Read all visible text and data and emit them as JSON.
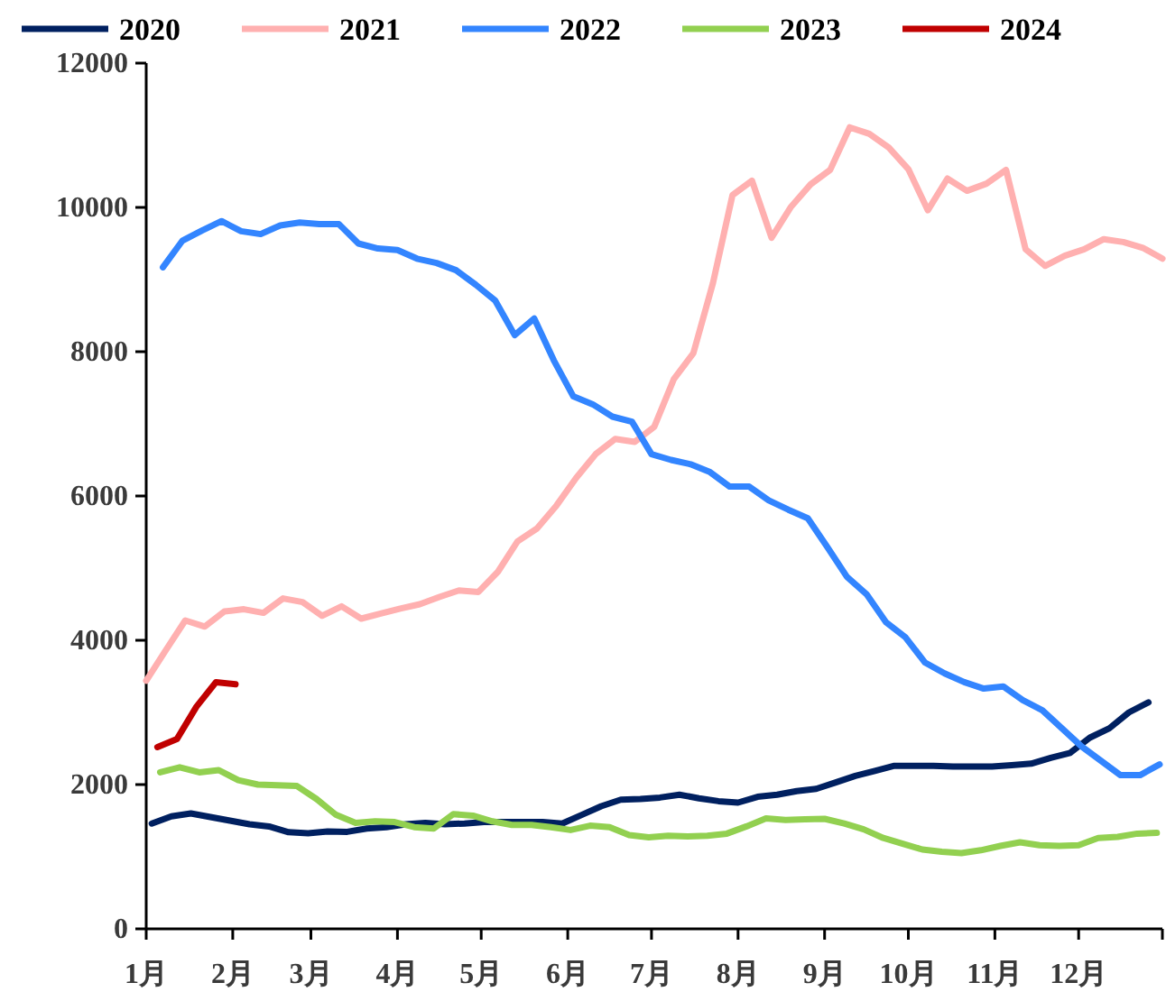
{
  "chart_data": {
    "type": "line",
    "legend": "top",
    "xlim": [
      "--01-01",
      "--12-31"
    ],
    "xticks": [
      {
        "value": "--01-01",
        "label": "1月"
      },
      {
        "value": "--02-01",
        "label": "2月"
      },
      {
        "value": "--03-01",
        "label": "3月"
      },
      {
        "value": "--04-01",
        "label": "4月"
      },
      {
        "value": "--05-01",
        "label": "5月"
      },
      {
        "value": "--06-01",
        "label": "6月"
      },
      {
        "value": "--07-01",
        "label": "7月"
      },
      {
        "value": "--08-01",
        "label": "8月"
      },
      {
        "value": "--09-01",
        "label": "9月"
      },
      {
        "value": "--10-01",
        "label": "10月"
      },
      {
        "value": "--11-01",
        "label": "11月"
      },
      {
        "value": "--12-01",
        "label": "12月"
      },
      {
        "value": "--12-31",
        "label": null
      }
    ],
    "ylim": [
      0,
      12000
    ],
    "yticks": [
      0,
      2000,
      4000,
      6000,
      8000,
      10000,
      12000
    ],
    "series": [
      {
        "name": "2020",
        "color": "#002060",
        "x": [
          "--01-03",
          "--01-10",
          "--01-17",
          "--01-24",
          "--01-31",
          "--02-07",
          "--02-14",
          "--02-21",
          "--02-28",
          "--03-07",
          "--03-14",
          "--03-21",
          "--03-28",
          "--04-04",
          "--04-11",
          "--04-18",
          "--04-25",
          "--05-02",
          "--05-09",
          "--05-16",
          "--05-23",
          "--05-30",
          "--06-06",
          "--06-13",
          "--06-20",
          "--06-27",
          "--07-04",
          "--07-11",
          "--07-18",
          "--07-25",
          "--08-01",
          "--08-08",
          "--08-15",
          "--08-22",
          "--08-29",
          "--09-05",
          "--09-12",
          "--09-19",
          "--09-26",
          "--10-03",
          "--10-10",
          "--10-17",
          "--10-24",
          "--10-31",
          "--11-07",
          "--11-14",
          "--11-21",
          "--11-28",
          "--12-05",
          "--12-12",
          "--12-19",
          "--12-26"
        ],
        "values": [
          1460,
          1560,
          1600,
          1550,
          1500,
          1450,
          1420,
          1340,
          1325,
          1350,
          1345,
          1390,
          1410,
          1450,
          1470,
          1450,
          1460,
          1480,
          1480,
          1480,
          1480,
          1460,
          1580,
          1700,
          1790,
          1800,
          1820,
          1860,
          1810,
          1770,
          1750,
          1830,
          1860,
          1910,
          1940,
          2030,
          2120,
          2190,
          2260,
          2260,
          2260,
          2250,
          2250,
          2250,
          2270,
          2290,
          2370,
          2440,
          2650,
          2780,
          3000,
          3140
        ]
      },
      {
        "name": "2021",
        "color": "#ffb0b0",
        "x": [
          "--01-01",
          "--01-08",
          "--01-15",
          "--01-22",
          "--01-29",
          "--02-05",
          "--02-12",
          "--02-19",
          "--02-26",
          "--03-05",
          "--03-12",
          "--03-19",
          "--03-26",
          "--04-02",
          "--04-09",
          "--04-16",
          "--04-23",
          "--04-30",
          "--05-07",
          "--05-14",
          "--05-21",
          "--05-28",
          "--06-04",
          "--06-11",
          "--06-18",
          "--06-25",
          "--07-02",
          "--07-09",
          "--07-16",
          "--07-23",
          "--07-30",
          "--08-06",
          "--08-13",
          "--08-20",
          "--08-27",
          "--09-03",
          "--09-10",
          "--09-17",
          "--09-24",
          "--10-01",
          "--10-08",
          "--10-15",
          "--10-22",
          "--10-29",
          "--11-05",
          "--11-12",
          "--11-19",
          "--11-26",
          "--12-03",
          "--12-10",
          "--12-17",
          "--12-24",
          "--12-31"
        ],
        "values": [
          3440,
          3860,
          4275,
          4190,
          4400,
          4430,
          4380,
          4580,
          4530,
          4340,
          4470,
          4300,
          4370,
          4440,
          4500,
          4600,
          4690,
          4670,
          4950,
          5370,
          5550,
          5870,
          6250,
          6580,
          6790,
          6750,
          6960,
          7620,
          7980,
          8950,
          10170,
          10370,
          9580,
          10010,
          10320,
          10520,
          11110,
          11020,
          10830,
          10530,
          9960,
          10400,
          10230,
          10330,
          10520,
          9420,
          9190,
          9330,
          9420,
          9560,
          9520,
          9440,
          9290
        ]
      },
      {
        "name": "2022",
        "color": "#3385ff",
        "x": [
          "--01-07",
          "--01-14",
          "--01-21",
          "--01-28",
          "--02-04",
          "--02-11",
          "--02-18",
          "--02-25",
          "--03-04",
          "--03-11",
          "--03-18",
          "--03-25",
          "--04-01",
          "--04-08",
          "--04-15",
          "--04-22",
          "--04-29",
          "--05-06",
          "--05-13",
          "--05-20",
          "--05-27",
          "--06-03",
          "--06-10",
          "--06-17",
          "--06-24",
          "--07-01",
          "--07-08",
          "--07-15",
          "--07-22",
          "--07-29",
          "--08-05",
          "--08-12",
          "--08-19",
          "--08-26",
          "--09-02",
          "--09-09",
          "--09-16",
          "--09-23",
          "--09-30",
          "--10-07",
          "--10-14",
          "--10-21",
          "--10-28",
          "--11-04",
          "--11-11",
          "--11-18",
          "--11-25",
          "--12-02",
          "--12-09",
          "--12-16",
          "--12-23",
          "--12-30"
        ],
        "values": [
          9170,
          9540,
          9680,
          9810,
          9670,
          9630,
          9750,
          9790,
          9770,
          9770,
          9500,
          9430,
          9410,
          9290,
          9230,
          9130,
          8930,
          8710,
          8230,
          8460,
          7880,
          7380,
          7270,
          7100,
          7030,
          6580,
          6500,
          6440,
          6330,
          6130,
          6130,
          5940,
          5810,
          5690,
          5290,
          4880,
          4640,
          4250,
          4040,
          3690,
          3540,
          3420,
          3330,
          3360,
          3170,
          3030,
          2780,
          2530,
          2330,
          2130,
          2130,
          2280
        ]
      },
      {
        "name": "2023",
        "color": "#92d050",
        "x": [
          "--01-06",
          "--01-13",
          "--01-20",
          "--01-27",
          "--02-03",
          "--02-10",
          "--02-17",
          "--02-24",
          "--03-03",
          "--03-10",
          "--03-17",
          "--03-24",
          "--03-31",
          "--04-07",
          "--04-14",
          "--04-21",
          "--04-28",
          "--05-05",
          "--05-12",
          "--05-19",
          "--05-26",
          "--06-02",
          "--06-09",
          "--06-16",
          "--06-23",
          "--06-30",
          "--07-07",
          "--07-14",
          "--07-21",
          "--07-28",
          "--08-04",
          "--08-11",
          "--08-18",
          "--08-25",
          "--09-01",
          "--09-08",
          "--09-15",
          "--09-22",
          "--09-29",
          "--10-06",
          "--10-13",
          "--10-20",
          "--10-27",
          "--11-03",
          "--11-10",
          "--11-17",
          "--11-24",
          "--12-01",
          "--12-08",
          "--12-15",
          "--12-22",
          "--12-29"
        ],
        "values": [
          2170,
          2240,
          2170,
          2200,
          2060,
          2000,
          1990,
          1980,
          1800,
          1580,
          1470,
          1490,
          1480,
          1410,
          1390,
          1590,
          1570,
          1490,
          1440,
          1440,
          1410,
          1370,
          1430,
          1410,
          1300,
          1270,
          1290,
          1280,
          1290,
          1320,
          1420,
          1530,
          1510,
          1520,
          1525,
          1460,
          1380,
          1260,
          1180,
          1100,
          1070,
          1050,
          1090,
          1150,
          1200,
          1160,
          1150,
          1160,
          1260,
          1275,
          1320,
          1330
        ]
      },
      {
        "name": "2024",
        "color": "#c00000",
        "x": [
          "--01-05",
          "--01-12",
          "--01-19",
          "--01-26",
          "--02-02"
        ],
        "values": [
          2520,
          2630,
          3080,
          3420,
          3390
        ]
      }
    ]
  }
}
